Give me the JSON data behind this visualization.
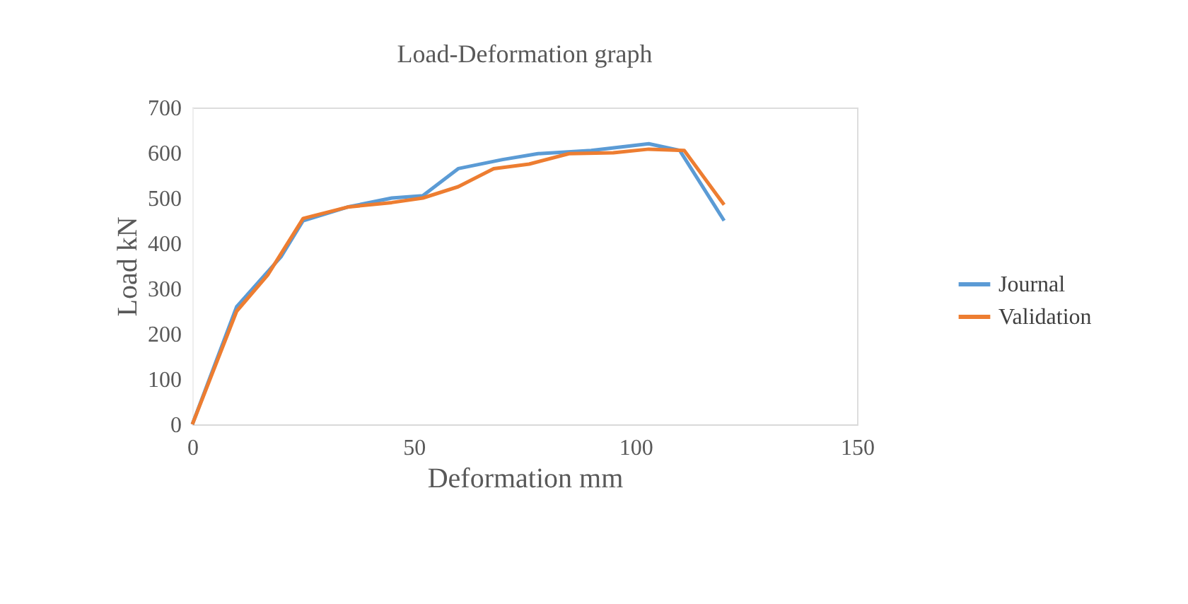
{
  "chart_data": {
    "type": "line",
    "title": "Load-Deformation graph",
    "xlabel": "Deformation mm",
    "ylabel": "Load kN",
    "xlim": [
      0,
      150
    ],
    "xticks": [
      0,
      50,
      100,
      150
    ],
    "ylim": [
      0,
      700
    ],
    "yticks": [
      0,
      100,
      200,
      300,
      400,
      500,
      600,
      700
    ],
    "grid": false,
    "legend": "right",
    "marker": "none",
    "line_style": "solid",
    "series": [
      {
        "name": "Journal",
        "color": "#5b9bd5",
        "x": [
          0,
          10,
          20,
          25,
          35,
          45,
          52,
          60,
          70,
          78,
          90,
          103,
          110,
          120
        ],
        "values": [
          0,
          260,
          370,
          450,
          480,
          500,
          505,
          565,
          585,
          598,
          605,
          620,
          605,
          450
        ]
      },
      {
        "name": "Validation",
        "color": "#ed7d31",
        "x": [
          0,
          10,
          17,
          25,
          35,
          45,
          52,
          60,
          68,
          76,
          85,
          95,
          103,
          111,
          120
        ],
        "values": [
          0,
          250,
          330,
          455,
          480,
          490,
          500,
          525,
          565,
          575,
          598,
          600,
          608,
          605,
          485
        ]
      }
    ]
  }
}
